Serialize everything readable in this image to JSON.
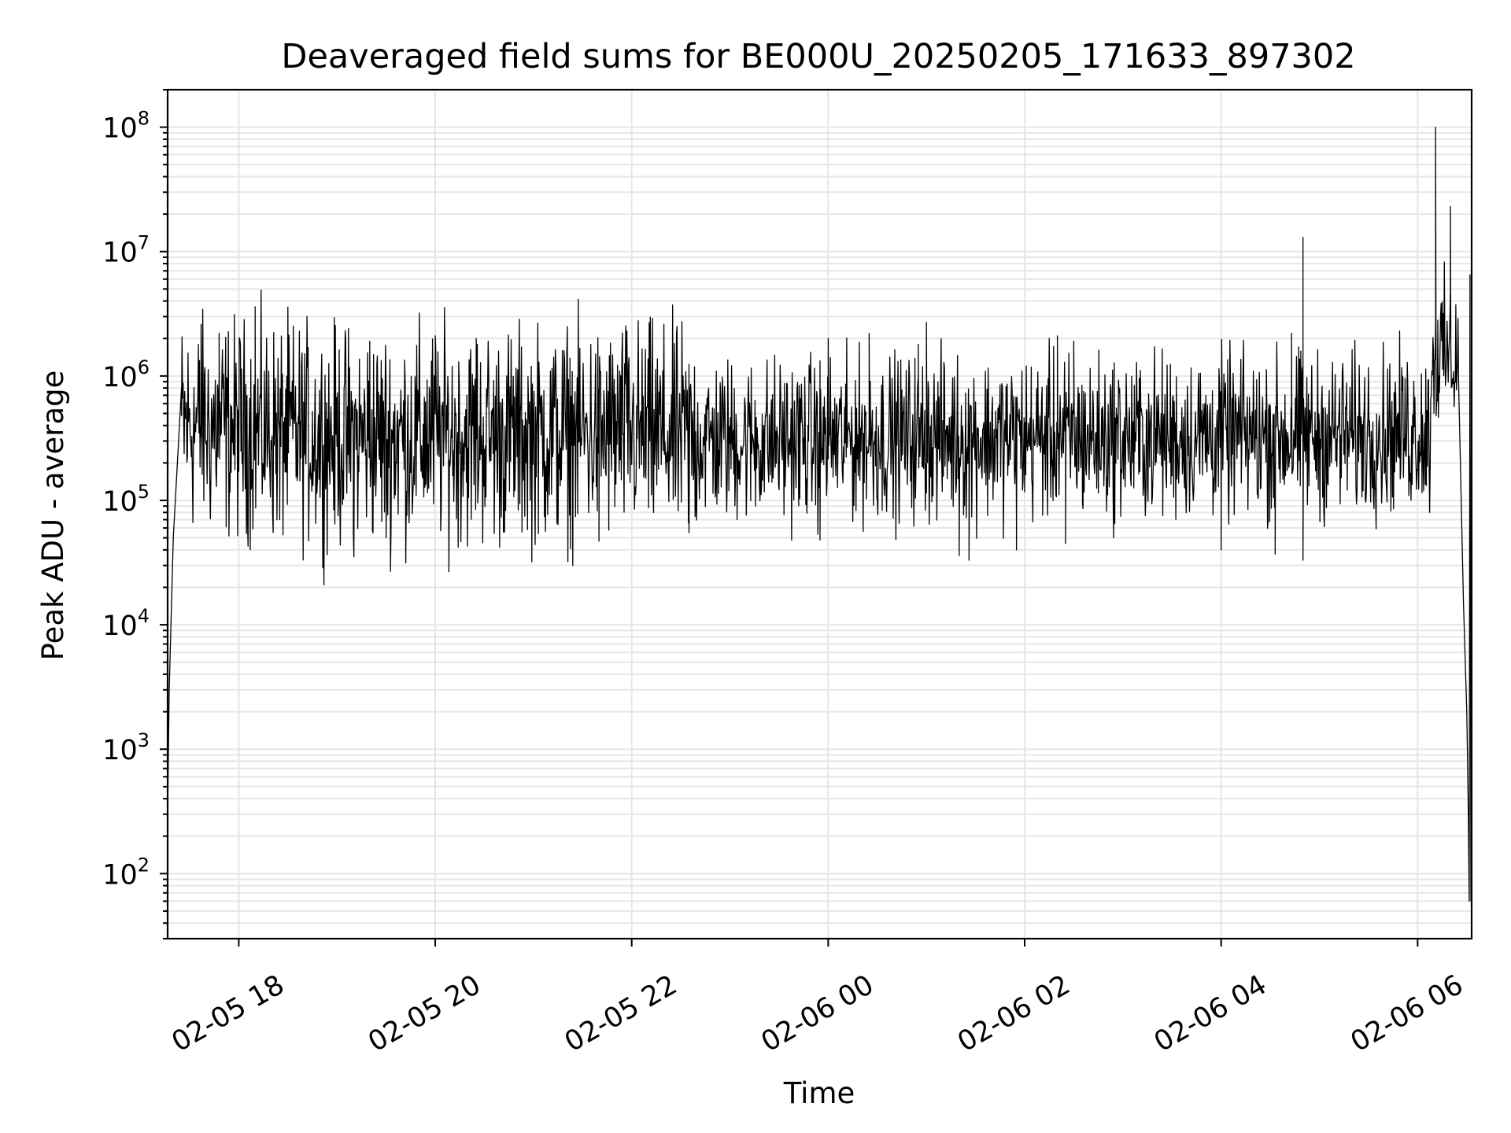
{
  "chart_data": {
    "type": "line",
    "title": "Deaveraged field sums for BE000U_20250205_171633_897302",
    "xlabel": "Time",
    "ylabel": "Peak ADU - average",
    "y_scale": "log",
    "ylim": [
      30,
      200000000
    ],
    "xlim": [
      "2025-02-05 17:16:33",
      "2025-02-06 06:33:00"
    ],
    "grid": true,
    "line_color": "#000000",
    "x_ticks": [
      {
        "t": "2025-02-05 18:00",
        "label": "02-05 18"
      },
      {
        "t": "2025-02-05 20:00",
        "label": "02-05 20"
      },
      {
        "t": "2025-02-05 22:00",
        "label": "02-05 22"
      },
      {
        "t": "2025-02-06 00:00",
        "label": "02-06 00"
      },
      {
        "t": "2025-02-06 02:00",
        "label": "02-06 02"
      },
      {
        "t": "2025-02-06 04:00",
        "label": "02-06 04"
      },
      {
        "t": "2025-02-06 06:00",
        "label": "02-06 06"
      }
    ],
    "y_ticks": [
      {
        "value": 100,
        "base": "10",
        "exp": "2"
      },
      {
        "value": 1000,
        "base": "10",
        "exp": "3"
      },
      {
        "value": 10000,
        "base": "10",
        "exp": "4"
      },
      {
        "value": 100000,
        "base": "10",
        "exp": "5"
      },
      {
        "value": 1000000,
        "base": "10",
        "exp": "6"
      },
      {
        "value": 10000000,
        "base": "10",
        "exp": "7"
      },
      {
        "value": 100000000,
        "base": "10",
        "exp": "8"
      }
    ],
    "series": [
      {
        "baseline_segments": [
          [
            "2025-02-05 17:30",
            400000
          ],
          [
            "2025-02-05 18:00",
            380000
          ],
          [
            "2025-02-05 19:00",
            320000
          ],
          [
            "2025-02-05 20:00",
            330000
          ],
          [
            "2025-02-05 21:00",
            330000
          ],
          [
            "2025-02-05 22:00",
            350000
          ],
          [
            "2025-02-05 23:00",
            300000
          ],
          [
            "2025-02-06 00:00",
            310000
          ],
          [
            "2025-02-06 01:00",
            320000
          ],
          [
            "2025-02-06 02:00",
            320000
          ],
          [
            "2025-02-06 03:00",
            320000
          ],
          [
            "2025-02-06 04:00",
            330000
          ],
          [
            "2025-02-06 05:00",
            330000
          ],
          [
            "2025-02-06 06:00",
            360000
          ]
        ],
        "ramp_up": [
          [
            "2025-02-05 17:16:33",
            300
          ],
          [
            "2025-02-05 17:17:30",
            3000
          ],
          [
            "2025-02-05 17:20:00",
            50000
          ],
          [
            "2025-02-05 17:25:00",
            800000
          ]
        ],
        "spikes": [
          [
            "2025-02-05 17:37",
            2600000
          ],
          [
            "2025-02-05 17:48",
            2200000
          ],
          [
            "2025-02-05 18:10",
            3600000
          ],
          [
            "2025-02-05 19:20",
            1900000
          ],
          [
            "2025-02-05 20:00",
            2100000
          ],
          [
            "2025-02-05 20:25",
            2000000
          ],
          [
            "2025-02-05 21:35",
            1800000
          ],
          [
            "2025-02-05 21:57",
            2300000
          ],
          [
            "2025-02-06 00:00",
            2000000
          ],
          [
            "2025-02-06 00:25",
            2200000
          ],
          [
            "2025-02-06 00:55",
            1800000
          ],
          [
            "2025-02-06 01:00",
            2700000
          ],
          [
            "2025-02-06 02:20",
            2100000
          ],
          [
            "2025-02-06 02:30",
            1900000
          ],
          [
            "2025-02-06 04:50",
            13000000
          ],
          [
            "2025-02-06 04:43",
            2200000
          ],
          [
            "2025-02-06 06:11",
            100000000
          ],
          [
            "2025-02-06 06:20",
            23000000
          ]
        ],
        "dips": [
          [
            "2025-02-05 18:25",
            70000
          ],
          [
            "2025-02-05 19:10",
            55000
          ],
          [
            "2025-02-05 19:30",
            50000
          ],
          [
            "2025-02-05 21:40",
            47000
          ],
          [
            "2025-02-05 22:35",
            55000
          ],
          [
            "2025-02-05 23:55",
            48000
          ],
          [
            "2025-02-06 01:20",
            36000
          ],
          [
            "2025-02-06 01:26",
            33000
          ],
          [
            "2025-02-06 01:55",
            40000
          ],
          [
            "2025-02-06 02:25",
            45000
          ],
          [
            "2025-02-06 04:00",
            40000
          ],
          [
            "2025-02-06 04:33",
            37000
          ],
          [
            "2025-02-06 04:50",
            33000
          ]
        ],
        "ramp_down": [
          [
            "2025-02-06 06:25",
            900000
          ],
          [
            "2025-02-06 06:28",
            15000
          ],
          [
            "2025-02-06 06:30",
            2000
          ],
          [
            "2025-02-06 06:31",
            300
          ],
          [
            "2025-02-06 06:31:30",
            60
          ],
          [
            "2025-02-06 06:32",
            6500000
          ],
          [
            "2025-02-06 06:32:30",
            60
          ]
        ]
      }
    ]
  }
}
